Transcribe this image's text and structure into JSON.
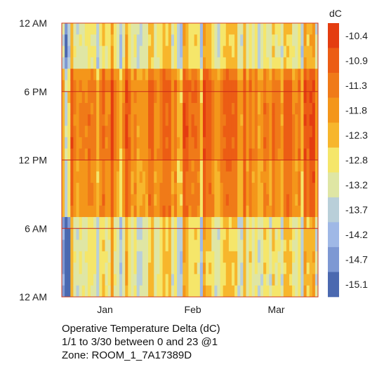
{
  "chart_data": {
    "type": "heatmap",
    "x_labels": [
      "Jan",
      "Feb",
      "Mar"
    ],
    "y_labels": [
      "12 AM",
      "6 PM",
      "12 PM",
      "6 AM",
      "12 AM"
    ],
    "x_range": [
      "1/1",
      "3/30"
    ],
    "hours_range": [
      0,
      23
    ],
    "days": 89,
    "legend": {
      "unit": "dC",
      "values": [
        "-10.4",
        "-10.9",
        "-11.3",
        "-11.8",
        "-12.3",
        "-12.8",
        "-13.2",
        "-13.7",
        "-14.2",
        "-14.7",
        "-15.1"
      ],
      "colors": [
        "#e43d10",
        "#ec5d14",
        "#f07a18",
        "#f4961a",
        "#f7b62c",
        "#f5e66a",
        "#dfe6a4",
        "#b9cfd9",
        "#9fb8e6",
        "#7d98d3",
        "#4b69b0"
      ]
    },
    "hour_lines": [
      6,
      12,
      18
    ]
  },
  "caption": {
    "line1": "Operative Temperature Delta (dC)",
    "line2": "1/1 to 3/30 between 0 and 23 @1",
    "line3": "Zone: ROOM_1_7A17389D"
  }
}
